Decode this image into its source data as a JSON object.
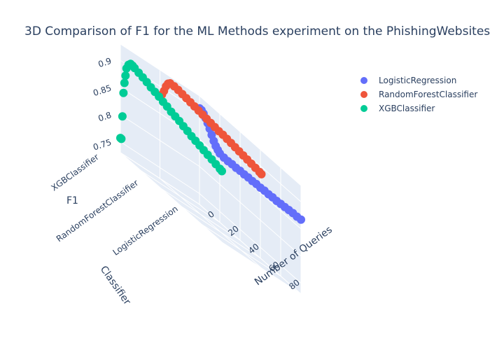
{
  "chart_data": {
    "type": "scatter3d",
    "title": "3D Comparison of F1 for the ML Methods experiment on the PhishingWebsites",
    "x_axis": {
      "title": "Number of Queries",
      "ticks": [
        "0",
        "20",
        "40",
        "60",
        "80"
      ],
      "range": [
        0,
        100
      ]
    },
    "y_axis": {
      "title": "Classifier",
      "ticks": [
        "LogisticRegression",
        "RandomForestClassifier",
        "XGBClassifier"
      ]
    },
    "z_axis": {
      "title": "F1",
      "ticks": [
        "0.75",
        "0.8",
        "0.85",
        "0.9"
      ],
      "range": [
        0.73,
        0.93
      ]
    },
    "grid": true,
    "legend_position": "top-right",
    "series": [
      {
        "name": "LogisticRegression",
        "color": "#636efa",
        "classifier_index": 0,
        "points": [
          [
            0,
            0.907
          ],
          [
            2,
            0.907
          ],
          [
            4,
            0.904
          ],
          [
            6,
            0.899
          ],
          [
            8,
            0.893
          ],
          [
            10,
            0.886
          ],
          [
            12,
            0.878
          ],
          [
            14,
            0.87
          ],
          [
            16,
            0.864
          ],
          [
            18,
            0.86
          ],
          [
            20,
            0.857
          ],
          [
            24,
            0.856
          ],
          [
            28,
            0.856
          ],
          [
            32,
            0.857
          ],
          [
            36,
            0.857
          ],
          [
            40,
            0.858
          ],
          [
            44,
            0.858
          ],
          [
            48,
            0.859
          ],
          [
            52,
            0.859
          ],
          [
            56,
            0.86
          ],
          [
            60,
            0.86
          ],
          [
            64,
            0.861
          ],
          [
            68,
            0.861
          ],
          [
            72,
            0.862
          ],
          [
            76,
            0.862
          ],
          [
            80,
            0.863
          ],
          [
            84,
            0.864
          ],
          [
            88,
            0.865
          ],
          [
            92,
            0.866
          ],
          [
            96,
            0.866
          ],
          [
            100,
            0.867
          ]
        ]
      },
      {
        "name": "RandomForestClassifier",
        "color": "#ef553b",
        "classifier_index": 1,
        "points": [
          [
            0,
            0.882
          ],
          [
            2,
            0.888
          ],
          [
            4,
            0.898
          ],
          [
            6,
            0.91
          ],
          [
            8,
            0.918
          ],
          [
            10,
            0.922
          ],
          [
            14,
            0.923
          ],
          [
            18,
            0.923
          ],
          [
            22,
            0.922
          ],
          [
            26,
            0.921
          ],
          [
            30,
            0.92
          ],
          [
            34,
            0.919
          ],
          [
            38,
            0.918
          ],
          [
            42,
            0.917
          ],
          [
            46,
            0.916
          ],
          [
            50,
            0.915
          ],
          [
            54,
            0.914
          ],
          [
            58,
            0.913
          ],
          [
            62,
            0.913
          ],
          [
            66,
            0.912
          ],
          [
            70,
            0.911
          ],
          [
            74,
            0.91
          ],
          [
            78,
            0.909
          ],
          [
            82,
            0.908
          ],
          [
            86,
            0.907
          ],
          [
            90,
            0.906
          ],
          [
            94,
            0.905
          ],
          [
            98,
            0.904
          ],
          [
            100,
            0.903
          ]
        ]
      },
      {
        "name": "XGBClassifier",
        "color": "#00cc96",
        "classifier_index": 2,
        "points": [
          [
            0,
            0.757
          ],
          [
            1,
            0.757
          ],
          [
            2,
            0.8
          ],
          [
            3,
            0.845
          ],
          [
            4,
            0.865
          ],
          [
            5,
            0.88
          ],
          [
            6,
            0.895
          ],
          [
            8,
            0.905
          ],
          [
            10,
            0.91
          ],
          [
            12,
            0.91
          ],
          [
            14,
            0.909
          ],
          [
            18,
            0.907
          ],
          [
            22,
            0.905
          ],
          [
            26,
            0.903
          ],
          [
            30,
            0.9
          ],
          [
            34,
            0.898
          ],
          [
            38,
            0.896
          ],
          [
            42,
            0.893
          ],
          [
            46,
            0.891
          ],
          [
            50,
            0.888
          ],
          [
            54,
            0.886
          ],
          [
            58,
            0.884
          ],
          [
            62,
            0.881
          ],
          [
            66,
            0.879
          ],
          [
            70,
            0.876
          ],
          [
            74,
            0.874
          ],
          [
            78,
            0.872
          ],
          [
            82,
            0.87
          ],
          [
            86,
            0.868
          ],
          [
            90,
            0.866
          ],
          [
            94,
            0.864
          ],
          [
            98,
            0.862
          ],
          [
            100,
            0.861
          ]
        ]
      }
    ]
  }
}
